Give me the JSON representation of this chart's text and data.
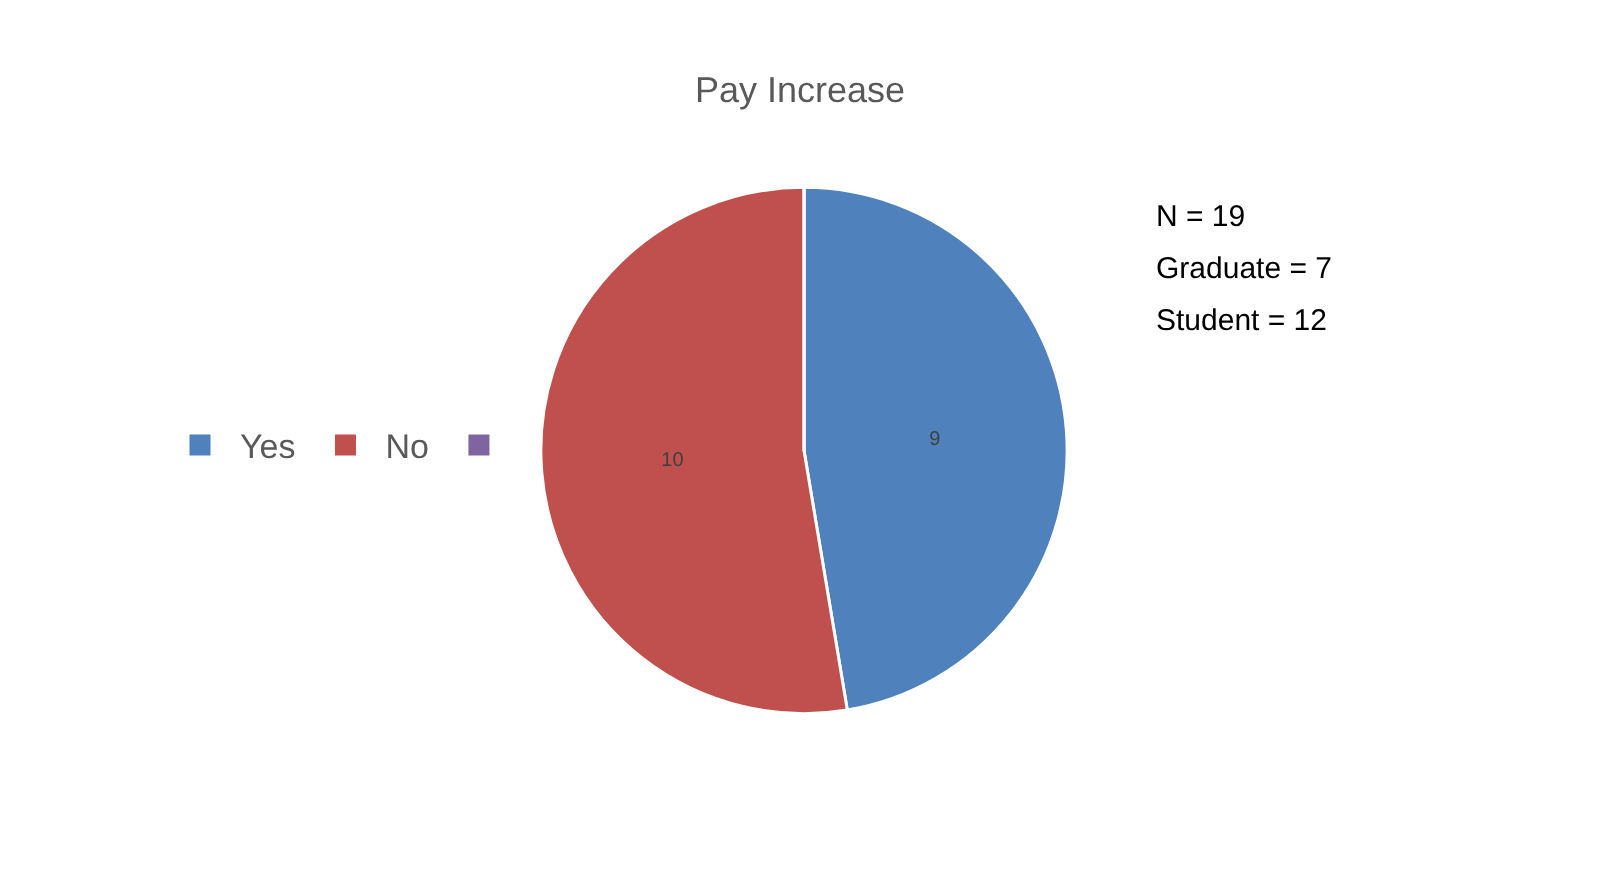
{
  "chart_data": {
    "type": "pie",
    "title": "Pay Increase",
    "categories": [
      "Yes",
      "No",
      null
    ],
    "values": [
      9,
      10,
      0
    ],
    "colors": [
      "#4f81bd",
      "#c0504d",
      "#8064a2"
    ],
    "data_labels": true,
    "legend": "left",
    "annotations": [
      "N = 19",
      "Graduate = 7",
      "Student = 12"
    ]
  }
}
